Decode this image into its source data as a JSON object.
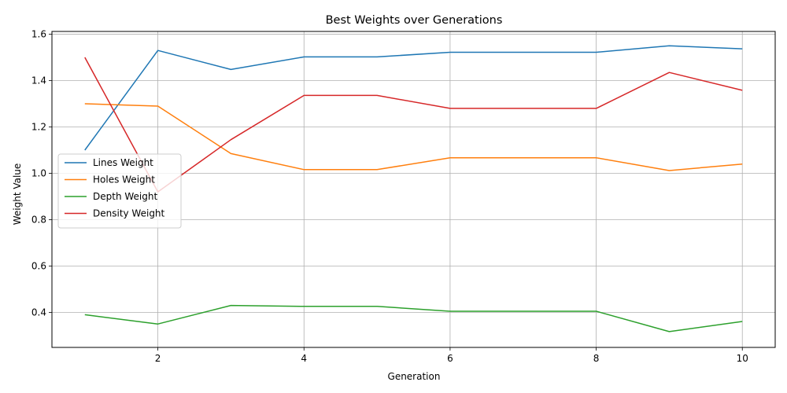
{
  "chart_data": {
    "type": "line",
    "title": "Best Weights over Generations",
    "xlabel": "Generation",
    "ylabel": "Weight Value",
    "x": [
      1,
      2,
      3,
      4,
      5,
      6,
      7,
      8,
      9,
      10
    ],
    "xlim": [
      0.55,
      10.45
    ],
    "ylim": [
      0.249,
      1.612
    ],
    "xticks": [
      2,
      4,
      6,
      8,
      10
    ],
    "yticks": [
      0.4,
      0.6,
      0.8,
      1.0,
      1.2,
      1.4,
      1.6
    ],
    "ytick_labels": [
      "0.4",
      "0.6",
      "0.8",
      "1.0",
      "1.2",
      "1.4",
      "1.6"
    ],
    "grid": true,
    "legend_position": "center-left",
    "series": [
      {
        "name": "Lines Weight",
        "color": "#1f77b4",
        "values": [
          1.1,
          1.53,
          1.448,
          1.502,
          1.502,
          1.522,
          1.522,
          1.522,
          1.55,
          1.537
        ]
      },
      {
        "name": "Holes Weight",
        "color": "#ff7f0e",
        "values": [
          1.3,
          1.29,
          1.085,
          1.016,
          1.016,
          1.067,
          1.067,
          1.067,
          1.012,
          1.04
        ]
      },
      {
        "name": "Depth Weight",
        "color": "#2ca02c",
        "values": [
          0.39,
          0.35,
          0.43,
          0.426,
          0.426,
          0.405,
          0.405,
          0.405,
          0.317,
          0.361
        ]
      },
      {
        "name": "Density Weight",
        "color": "#d62728",
        "values": [
          1.5,
          0.92,
          1.145,
          1.336,
          1.336,
          1.28,
          1.28,
          1.28,
          1.435,
          1.358
        ]
      }
    ]
  }
}
